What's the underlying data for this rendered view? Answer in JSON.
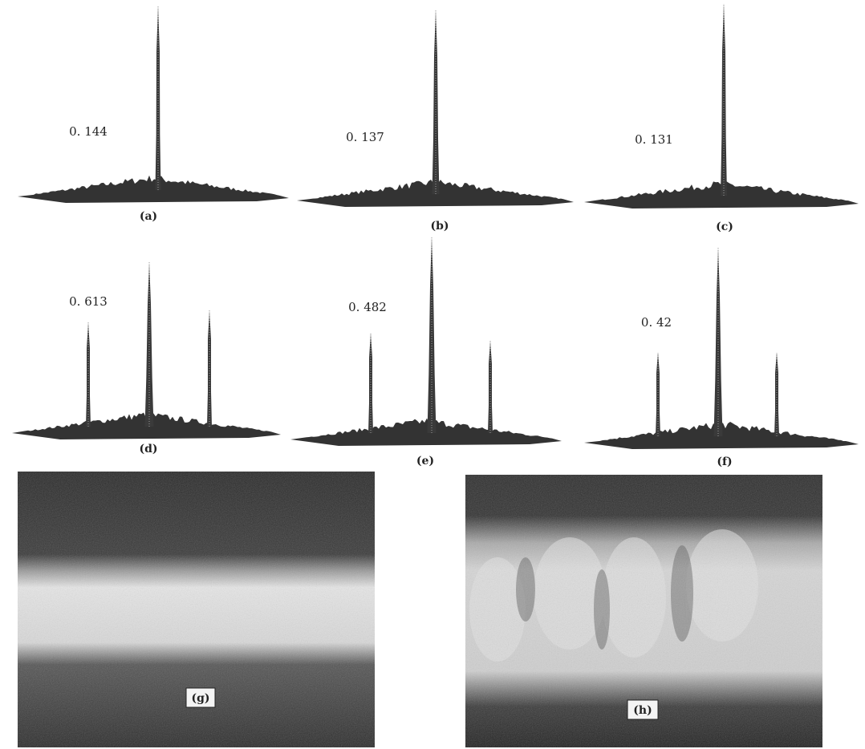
{
  "panels": [
    {
      "value": "0. 144",
      "caption": "(a)"
    },
    {
      "value": "0. 137",
      "caption": "(b)"
    },
    {
      "value": "0. 131",
      "caption": "(c)"
    },
    {
      "value": "0. 613",
      "caption": "(d)"
    },
    {
      "value": "0. 482",
      "caption": "(e)"
    },
    {
      "value": "0. 42",
      "caption": "(f)"
    }
  ],
  "images": [
    {
      "label": "(g)"
    },
    {
      "label": "(h)"
    }
  ]
}
